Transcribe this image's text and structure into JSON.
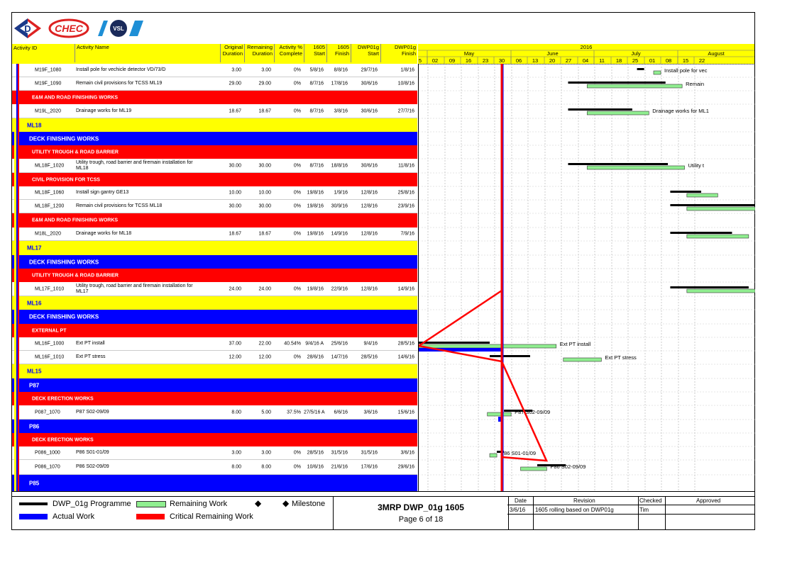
{
  "logos": {
    "chec": "CHEC",
    "vsl": "VSL"
  },
  "columns": {
    "activity_id": "Activity ID",
    "activity_name": "Activity Name",
    "original_duration": [
      "Original",
      "Duration"
    ],
    "remaining_duration": [
      "Remaining",
      "Duration"
    ],
    "activity_pct": [
      "Activity %",
      "Complete"
    ],
    "start_1605": [
      "1605",
      "Start"
    ],
    "finish_1605": [
      "1605",
      "Finish"
    ],
    "dwp_start": [
      "DWP01g",
      "Start"
    ],
    "dwp_finish": [
      "DWP01g",
      "Finish"
    ]
  },
  "timeline": {
    "year": "2016",
    "months": [
      "May",
      "June",
      "July",
      "August"
    ],
    "weeks": [
      "5",
      "02",
      "09",
      "16",
      "23",
      "30",
      "06",
      "13",
      "20",
      "27",
      "04",
      "11",
      "18",
      "25",
      "01",
      "08",
      "15",
      "22"
    ]
  },
  "rows": [
    {
      "type": "act",
      "id": "M19F_1080",
      "name": "Install pole for vechicle detector VD/73/D",
      "od": "3.00",
      "rd": "3.00",
      "pct": "0%",
      "s": "5/8/16",
      "f": "8/8/16",
      "ds": "29/7/16",
      "df": "1/8/16",
      "label": "Install pole for vec"
    },
    {
      "type": "act",
      "id": "M19F_1090",
      "name": "Remain civil provisions for TCSS ML19",
      "od": "29.00",
      "rd": "29.00",
      "pct": "0%",
      "s": "8/7/16",
      "f": "17/8/16",
      "ds": "30/6/16",
      "df": "10/8/16",
      "label": "Remain"
    },
    {
      "type": "red",
      "name": "E&M AND ROAD FINISHING WORKS"
    },
    {
      "type": "act",
      "id": "M19L_2020",
      "name": "Drainage works for ML19",
      "od": "18.67",
      "rd": "18.67",
      "pct": "0%",
      "s": "8/7/16",
      "f": "3/8/16",
      "ds": "30/6/16",
      "df": "27/7/16",
      "label": "Drainage works for ML1"
    },
    {
      "type": "yellow",
      "name": "ML18"
    },
    {
      "type": "blue",
      "name": "DECK FINISHING WORKS"
    },
    {
      "type": "red",
      "name": "UTILITY TROUGH & ROAD BARRIER"
    },
    {
      "type": "act",
      "id": "ML18F_1020",
      "name": "Utility trough, road barrier and firemain installation for",
      "name2": "ML18",
      "od": "30.00",
      "rd": "30.00",
      "pct": "0%",
      "s": "8/7/16",
      "f": "18/8/16",
      "ds": "30/6/16",
      "df": "11/8/16",
      "label": "Utility t"
    },
    {
      "type": "red",
      "name": "CIVIL PROVISION FOR TCSS"
    },
    {
      "type": "act",
      "id": "ML18F_1060",
      "name": "Install sign gantry GE13",
      "od": "10.00",
      "rd": "10.00",
      "pct": "0%",
      "s": "19/8/16",
      "f": "1/9/16",
      "ds": "12/8/16",
      "df": "25/8/16",
      "label": ""
    },
    {
      "type": "act",
      "id": "ML18F_1200",
      "name": "Remain civil provisions for TCSS ML18",
      "od": "30.00",
      "rd": "30.00",
      "pct": "0%",
      "s": "19/8/16",
      "f": "30/9/16",
      "ds": "12/8/16",
      "df": "23/9/16",
      "label": ""
    },
    {
      "type": "red",
      "name": "E&M AND ROAD FINISHING WORKS"
    },
    {
      "type": "act",
      "id": "M18L_2020",
      "name": "Drainage works for ML18",
      "od": "18.67",
      "rd": "18.67",
      "pct": "0%",
      "s": "19/8/16",
      "f": "14/9/16",
      "ds": "12/8/16",
      "df": "7/9/16",
      "label": ""
    },
    {
      "type": "yellow",
      "name": "ML17"
    },
    {
      "type": "blue",
      "name": "DECK FINISHING WORKS"
    },
    {
      "type": "red",
      "name": "UTILITY TROUGH & ROAD BARRIER"
    },
    {
      "type": "act",
      "id": "ML17F_1010",
      "name": "Utility trough, road barrier and firemain installation for",
      "name2": "ML17",
      "od": "24.00",
      "rd": "24.00",
      "pct": "0%",
      "s": "19/8/16",
      "f": "22/9/16",
      "ds": "12/8/16",
      "df": "14/9/16",
      "label": ""
    },
    {
      "type": "yellow",
      "name": "ML16"
    },
    {
      "type": "blue",
      "name": "DECK FINISHING WORKS"
    },
    {
      "type": "red",
      "name": "EXTERNAL PT"
    },
    {
      "type": "act",
      "id": "ML16F_1000",
      "name": "Ext PT install",
      "od": "37.00",
      "rd": "22.00",
      "pct": "40.54%",
      "s": "9/4/16 A",
      "f": "25/6/16",
      "ds": "9/4/16",
      "df": "28/5/16",
      "label": "Ext PT install"
    },
    {
      "type": "act",
      "id": "ML16F_1010",
      "name": "Ext PT stress",
      "od": "12.00",
      "rd": "12.00",
      "pct": "0%",
      "s": "28/6/16",
      "f": "14/7/16",
      "ds": "28/5/16",
      "df": "14/6/16",
      "label": "Ext PT stress"
    },
    {
      "type": "yellow",
      "name": "ML15"
    },
    {
      "type": "blue",
      "name": "P87"
    },
    {
      "type": "red",
      "name": "DECK ERECTION WORKS"
    },
    {
      "type": "act",
      "id": "P087_1070",
      "name": "P87 S02-09/09",
      "od": "8.00",
      "rd": "5.00",
      "pct": "37.5%",
      "s": "27/5/16 A",
      "f": "6/6/16",
      "ds": "3/6/16",
      "df": "15/6/16",
      "label": "P87 S02-09/09"
    },
    {
      "type": "blue",
      "name": "P86"
    },
    {
      "type": "red",
      "name": "DECK ERECTION WORKS"
    },
    {
      "type": "act",
      "id": "P086_1000",
      "name": "P86 S01-01/09",
      "od": "3.00",
      "rd": "3.00",
      "pct": "0%",
      "s": "28/5/16",
      "f": "31/5/16",
      "ds": "31/5/16",
      "df": "3/6/16",
      "label": "P86 S01-01/09"
    },
    {
      "type": "act",
      "id": "P086_1070",
      "name": "P86 S02-09/09",
      "od": "8.00",
      "rd": "8.00",
      "pct": "0%",
      "s": "10/6/16",
      "f": "21/6/16",
      "ds": "17/6/16",
      "df": "29/6/16",
      "label": "P86 S02-09/09"
    },
    {
      "type": "blue",
      "name": "P85"
    }
  ],
  "legend": {
    "programme": "DWP_01g Programme",
    "remaining": "Remaining Work",
    "milestone": "Milestone",
    "actual": "Actual Work",
    "critical": "Critical Remaining Work"
  },
  "title": {
    "main": "3MRP DWP_01g 1605",
    "page": "Page 6 of 18"
  },
  "revision": {
    "headers": [
      "Date",
      "Revision",
      "Checked",
      "Approved"
    ],
    "date": "3/6/16",
    "text": "1605 rolling based on DWP01g",
    "checked": "Tim",
    "approved": ""
  },
  "colors": {
    "yellow": "#ffff00",
    "red": "#ff0000",
    "blue": "#0000ff",
    "green": "#90ee90"
  }
}
